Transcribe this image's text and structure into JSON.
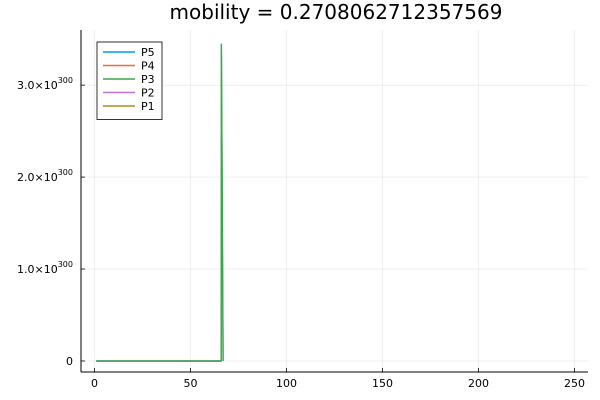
{
  "chart_data": {
    "type": "line",
    "title": "mobility = 0.2708062712357569",
    "xlabel": "",
    "ylabel": "",
    "xlim": [
      -7,
      257
    ],
    "ylim": [
      -0.12,
      3.6
    ],
    "y_unit_note": "×1e300",
    "grid": true,
    "legend_position": "top-left",
    "x_ticks": [
      0,
      50,
      100,
      150,
      200,
      250
    ],
    "x_tick_labels": [
      "0",
      "50",
      "100",
      "150",
      "200",
      "250"
    ],
    "y_ticks": [
      0,
      1,
      2,
      3
    ],
    "y_tick_labels": [
      {
        "mantissa": "0",
        "exponent": ""
      },
      {
        "mantissa": "1.0×10",
        "exponent": "300"
      },
      {
        "mantissa": "2.0×10",
        "exponent": "300"
      },
      {
        "mantissa": "3.0×10",
        "exponent": "300"
      }
    ],
    "series": [
      {
        "name": "P5",
        "color": "#009af9",
        "x": [
          1,
          66
        ],
        "y": [
          0,
          0
        ]
      },
      {
        "name": "P4",
        "color": "#e26f46",
        "x": [
          1,
          66
        ],
        "y": [
          0,
          0
        ]
      },
      {
        "name": "P3",
        "color": "#3da44d",
        "x": [
          1,
          65,
          66,
          66.1,
          67
        ],
        "y": [
          0,
          0,
          0,
          3.45,
          0
        ]
      },
      {
        "name": "P2",
        "color": "#c271d2",
        "x": [
          1,
          66
        ],
        "y": [
          0,
          0
        ]
      },
      {
        "name": "P1",
        "color": "#ac8d18",
        "x": [
          1,
          66
        ],
        "y": [
          0,
          0
        ]
      }
    ]
  }
}
